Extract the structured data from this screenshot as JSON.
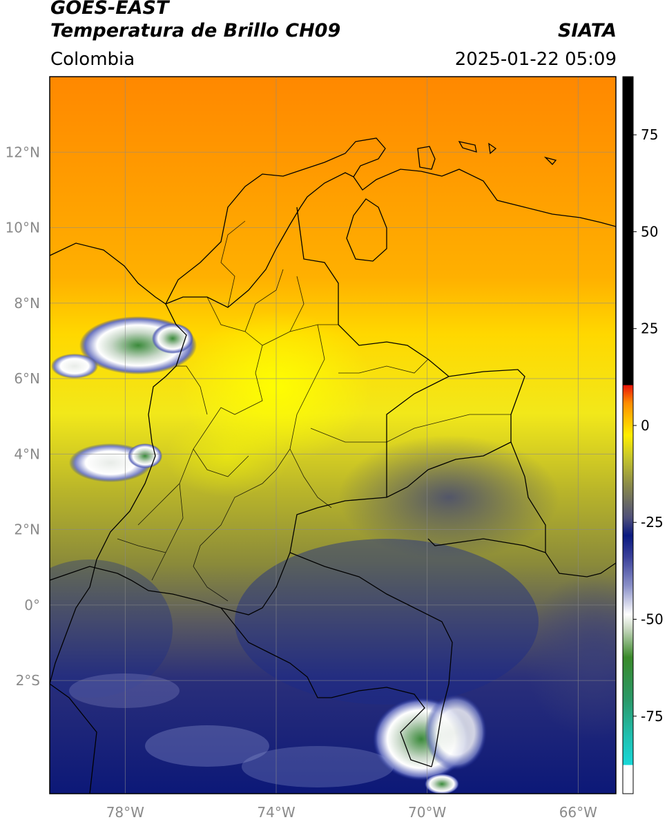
{
  "header": {
    "satellite": "GOES-EAST",
    "product": "Temperatura de Brillo CH09",
    "org": "SIATA",
    "region": "Colombia",
    "datetime": "2025-01-22 05:09"
  },
  "map": {
    "lon_range": [
      -80,
      -65
    ],
    "lat_range": [
      -5,
      14
    ],
    "lon_ticks": [
      {
        "value": -78,
        "label": "78°W"
      },
      {
        "value": -74,
        "label": "74°W"
      },
      {
        "value": -70,
        "label": "70°W"
      },
      {
        "value": -66,
        "label": "66°W"
      }
    ],
    "lat_ticks": [
      {
        "value": 12,
        "label": "12°N"
      },
      {
        "value": 10,
        "label": "10°N"
      },
      {
        "value": 8,
        "label": "8°N"
      },
      {
        "value": 6,
        "label": "6°N"
      },
      {
        "value": 4,
        "label": "4°N"
      },
      {
        "value": 2,
        "label": "2°N"
      },
      {
        "value": 0,
        "label": "0°"
      },
      {
        "value": -2,
        "label": "2°S"
      }
    ],
    "grid": true
  },
  "colorbar": {
    "range": [
      -95,
      90
    ],
    "ticks": [
      {
        "value": 75,
        "label": "75"
      },
      {
        "value": 50,
        "label": "50"
      },
      {
        "value": 25,
        "label": "25"
      },
      {
        "value": 0,
        "label": "0"
      },
      {
        "value": -25,
        "label": "-25"
      },
      {
        "value": -50,
        "label": "-50"
      },
      {
        "value": -75,
        "label": "-75"
      }
    ],
    "colors": {
      "black": "#000000",
      "red": "#e8140a",
      "orange": "#ff8c00",
      "yellow": "#ffee00",
      "olive": "#9a9a1e",
      "gray": "#6a6a5a",
      "navy": "#0a1a7a",
      "white": "#ffffff",
      "green": "#2e8a2e",
      "cyan": "#1ee0e0"
    }
  }
}
